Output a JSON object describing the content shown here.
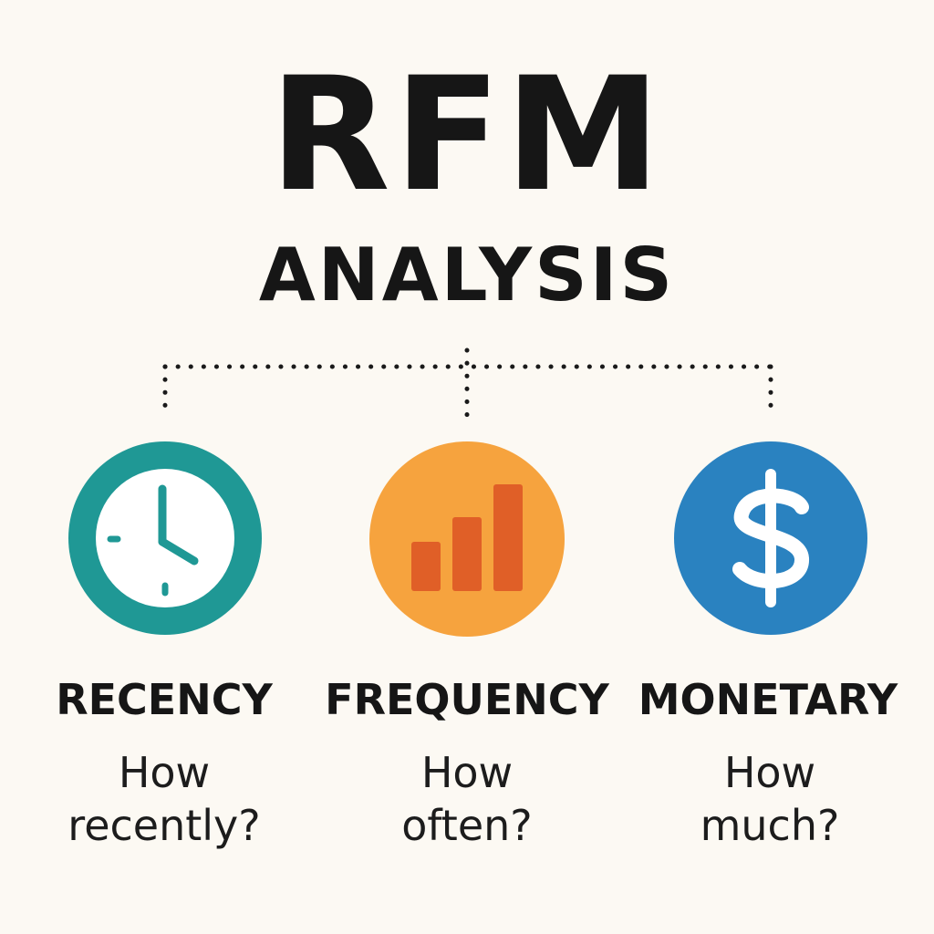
{
  "title": "RFM",
  "subtitle": "ANALYSIS",
  "colors": {
    "background": "#fcf9f3",
    "text": "#161616",
    "connector": "#1a1a1a",
    "recency": "#1f9895",
    "frequency": "#f6a33e",
    "frequency_bars": "#e05f27",
    "monetary": "#2a82c0"
  },
  "metrics": [
    {
      "label": "RECENCY",
      "question_line1": "How",
      "question_line2": "recently?",
      "icon": "clock-icon"
    },
    {
      "label": "FREQUENCY",
      "question_line1": "How",
      "question_line2": "often?",
      "icon": "bar-chart-icon"
    },
    {
      "label": "MONETARY",
      "question_line1": "How",
      "question_line2": "much?",
      "icon": "dollar-icon"
    }
  ]
}
